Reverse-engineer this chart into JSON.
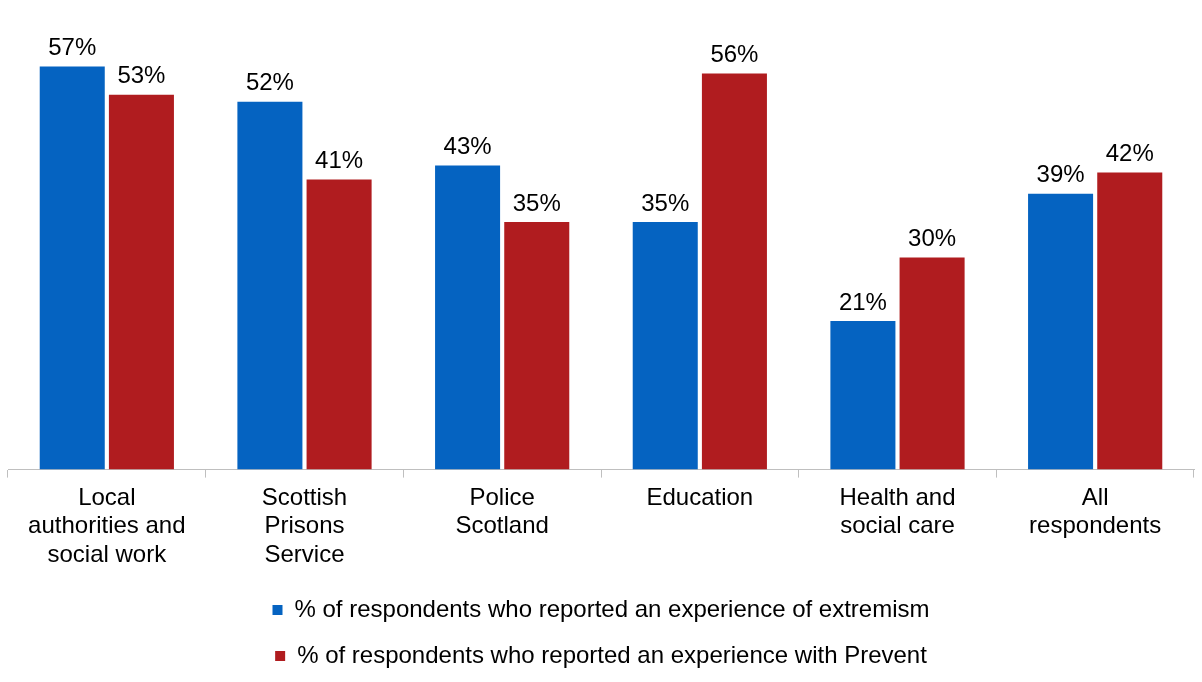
{
  "chart_data": {
    "type": "bar",
    "categories": [
      "Local authorities and social work",
      "Scottish Prisons Service",
      "Police Scotland",
      "Education",
      "Health and social care",
      "All respondents"
    ],
    "series": [
      {
        "name": "% of respondents who reported an experience of extremism",
        "color": "#0563c1",
        "values": [
          57,
          52,
          43,
          35,
          21,
          39
        ],
        "value_labels": [
          "57%",
          "52%",
          "43%",
          "35%",
          "21%",
          "39%"
        ]
      },
      {
        "name": "% of respondents who reported an experience with Prevent",
        "color": "#b01c1f",
        "values": [
          53,
          41,
          35,
          56,
          30,
          42
        ],
        "value_labels": [
          "53%",
          "41%",
          "35%",
          "56%",
          "30%",
          "42%"
        ]
      }
    ],
    "legend": "bottom"
  }
}
